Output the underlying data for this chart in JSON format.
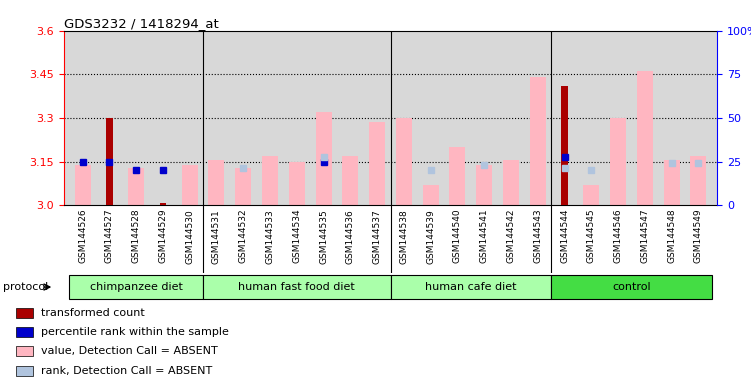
{
  "title": "GDS3232 / 1418294_at",
  "samples": [
    "GSM144526",
    "GSM144527",
    "GSM144528",
    "GSM144529",
    "GSM144530",
    "GSM144531",
    "GSM144532",
    "GSM144533",
    "GSM144534",
    "GSM144535",
    "GSM144536",
    "GSM144537",
    "GSM144538",
    "GSM144539",
    "GSM144540",
    "GSM144541",
    "GSM144542",
    "GSM144543",
    "GSM144544",
    "GSM144545",
    "GSM144546",
    "GSM144547",
    "GSM144548",
    "GSM144549"
  ],
  "red_bar_values": [
    null,
    3.3,
    null,
    3.01,
    null,
    null,
    null,
    null,
    null,
    null,
    null,
    null,
    null,
    null,
    null,
    null,
    null,
    null,
    3.41,
    null,
    null,
    null,
    null,
    null
  ],
  "blue_dot_values": [
    3.15,
    3.15,
    3.12,
    3.12,
    null,
    null,
    null,
    null,
    null,
    3.15,
    null,
    null,
    null,
    null,
    null,
    null,
    null,
    null,
    3.165,
    null,
    null,
    null,
    null,
    null
  ],
  "pink_bar_values": [
    3.14,
    null,
    3.13,
    null,
    3.14,
    3.155,
    3.13,
    3.17,
    3.15,
    3.32,
    3.17,
    3.285,
    3.3,
    3.07,
    3.2,
    3.14,
    3.155,
    3.44,
    null,
    3.07,
    3.3,
    3.46,
    3.155,
    3.17
  ],
  "light_blue_dot_values": [
    null,
    null,
    null,
    null,
    null,
    null,
    3.13,
    null,
    null,
    3.165,
    null,
    null,
    null,
    3.12,
    null,
    3.14,
    null,
    null,
    3.13,
    3.12,
    null,
    null,
    3.145,
    3.145
  ],
  "ylim_left": [
    3.0,
    3.6
  ],
  "ylim_right": [
    0,
    100
  ],
  "yticks_left": [
    3.0,
    3.15,
    3.3,
    3.45,
    3.6
  ],
  "yticks_right": [
    0,
    25,
    50,
    75,
    100
  ],
  "ytick_labels_right": [
    "0",
    "25",
    "50",
    "75",
    "100%"
  ],
  "hlines": [
    3.15,
    3.3,
    3.45
  ],
  "bar_width": 0.6,
  "red_color": "#AA0000",
  "blue_color": "#0000CC",
  "pink_color": "#FFB6C1",
  "light_blue_color": "#B0C4DE",
  "plot_bg": "#D8D8D8",
  "group_defs": [
    [
      0,
      4,
      "chimpanzee diet",
      "#AAFFAA"
    ],
    [
      5,
      11,
      "human fast food diet",
      "#AAFFAA"
    ],
    [
      12,
      17,
      "human cafe diet",
      "#AAFFAA"
    ],
    [
      18,
      23,
      "control",
      "#44DD44"
    ]
  ],
  "group_separators": [
    4.5,
    11.5,
    17.5
  ],
  "protocol_label": "protocol"
}
